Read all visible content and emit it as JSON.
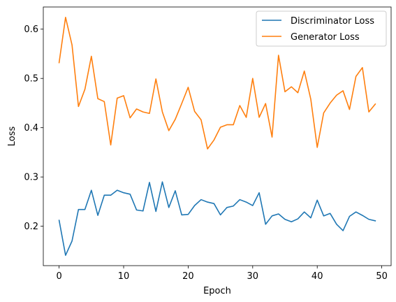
{
  "chart_data": {
    "type": "line",
    "title": "",
    "xlabel": "Epoch",
    "ylabel": "Loss",
    "xlim": [
      -2.45,
      51.45
    ],
    "ylim": [
      0.12,
      0.645
    ],
    "xticks": [
      0,
      10,
      20,
      30,
      40,
      50
    ],
    "yticks": [
      0.2,
      0.3,
      0.4,
      0.5,
      0.6
    ],
    "grid": false,
    "legend_position": "top-right",
    "x": [
      0,
      1,
      2,
      3,
      4,
      5,
      6,
      7,
      8,
      9,
      10,
      11,
      12,
      13,
      14,
      15,
      16,
      17,
      18,
      19,
      20,
      21,
      22,
      23,
      24,
      25,
      26,
      27,
      28,
      29,
      30,
      31,
      32,
      33,
      34,
      35,
      36,
      37,
      38,
      39,
      40,
      41,
      42,
      43,
      44,
      45,
      46,
      47,
      48,
      49
    ],
    "series": [
      {
        "name": "Discriminator Loss",
        "color": "#1f77b4",
        "values": [
          0.212,
          0.141,
          0.17,
          0.234,
          0.234,
          0.273,
          0.222,
          0.263,
          0.263,
          0.273,
          0.268,
          0.265,
          0.233,
          0.231,
          0.289,
          0.23,
          0.29,
          0.238,
          0.272,
          0.223,
          0.224,
          0.242,
          0.254,
          0.249,
          0.246,
          0.223,
          0.238,
          0.241,
          0.254,
          0.249,
          0.242,
          0.268,
          0.204,
          0.221,
          0.225,
          0.214,
          0.209,
          0.215,
          0.229,
          0.217,
          0.253,
          0.221,
          0.226,
          0.204,
          0.191,
          0.22,
          0.229,
          0.222,
          0.214,
          0.211
        ]
      },
      {
        "name": "Generator Loss",
        "color": "#ff7f0e",
        "values": [
          0.532,
          0.624,
          0.568,
          0.443,
          0.478,
          0.545,
          0.459,
          0.453,
          0.365,
          0.46,
          0.465,
          0.42,
          0.438,
          0.432,
          0.429,
          0.499,
          0.432,
          0.394,
          0.417,
          0.449,
          0.482,
          0.433,
          0.416,
          0.357,
          0.375,
          0.401,
          0.406,
          0.406,
          0.445,
          0.421,
          0.5,
          0.421,
          0.449,
          0.381,
          0.547,
          0.473,
          0.483,
          0.471,
          0.515,
          0.458,
          0.36,
          0.43,
          0.45,
          0.466,
          0.475,
          0.437,
          0.504,
          0.522,
          0.432,
          0.448
        ]
      }
    ]
  }
}
